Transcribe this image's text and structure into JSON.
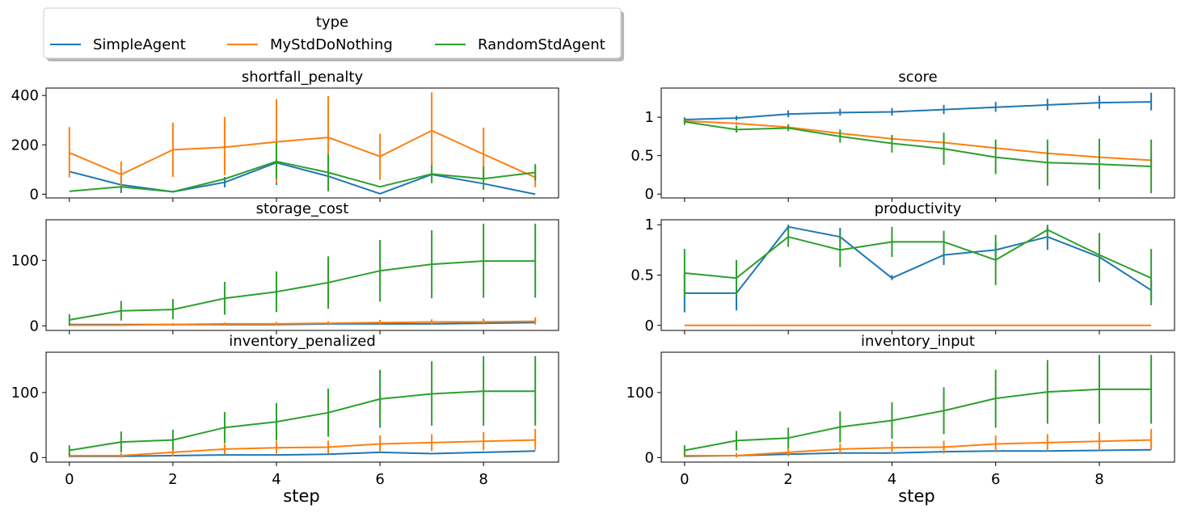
{
  "legend": {
    "title": "type",
    "placement": "upper-left-outside",
    "entries": [
      {
        "name": "SimpleAgent",
        "color": "#1f77b4"
      },
      {
        "name": "MyStdDoNothing",
        "color": "#ff7f0e"
      },
      {
        "name": "RandomStdAgent",
        "color": "#2ca02c"
      }
    ]
  },
  "xlabel": "step",
  "chart_data": [
    {
      "type": "line",
      "title": "shortfall_penalty",
      "x": [
        0,
        1,
        2,
        3,
        4,
        5,
        6,
        7,
        8,
        9
      ],
      "xticks": [
        0,
        2,
        4,
        6,
        8
      ],
      "ylim": [
        -15,
        430
      ],
      "yticks": [
        0,
        200,
        400
      ],
      "grid": false,
      "series": [
        {
          "name": "SimpleAgent",
          "color": "#1f77b4",
          "values": [
            92,
            38,
            10,
            48,
            128,
            73,
            2,
            80,
            43,
            0
          ],
          "err": [
            null,
            [
              5,
              72
            ],
            null,
            [
              28,
              70
            ],
            [
              38,
              138
            ],
            null,
            null,
            null,
            null,
            null
          ]
        },
        {
          "name": "MyStdDoNothing",
          "color": "#ff7f0e",
          "values": [
            168,
            80,
            180,
            190,
            212,
            230,
            153,
            258,
            162,
            68
          ],
          "err": [
            [
              68,
              272
            ],
            [
              28,
              133
            ],
            [
              70,
              290
            ],
            [
              78,
              313
            ],
            [
              45,
              385
            ],
            [
              88,
              398
            ],
            [
              58,
              245
            ],
            [
              110,
              413
            ],
            [
              58,
              270
            ],
            [
              28,
              118
            ]
          ]
        },
        {
          "name": "RandomStdAgent",
          "color": "#2ca02c",
          "values": [
            12,
            30,
            10,
            62,
            133,
            88,
            30,
            82,
            63,
            88
          ],
          "err": [
            null,
            null,
            null,
            null,
            [
              62,
              210
            ],
            [
              12,
              163
            ],
            null,
            [
              45,
              118
            ],
            [
              18,
              112
            ],
            [
              55,
              122
            ]
          ]
        }
      ]
    },
    {
      "type": "line",
      "title": "score",
      "x": [
        0,
        1,
        2,
        3,
        4,
        5,
        6,
        7,
        8,
        9
      ],
      "xticks": [
        0,
        2,
        4,
        6,
        8
      ],
      "ylim": [
        -0.05,
        1.38
      ],
      "yticks": [
        0.0,
        0.5,
        1.0
      ],
      "grid": false,
      "series": [
        {
          "name": "SimpleAgent",
          "color": "#1f77b4",
          "values": [
            0.97,
            0.99,
            1.04,
            1.06,
            1.07,
            1.1,
            1.13,
            1.16,
            1.19,
            1.2
          ],
          "err": [
            [
              0.94,
              1.0
            ],
            [
              0.96,
              1.02
            ],
            [
              1.0,
              1.09
            ],
            [
              1.02,
              1.11
            ],
            [
              1.02,
              1.12
            ],
            [
              1.04,
              1.16
            ],
            [
              1.07,
              1.2
            ],
            [
              1.09,
              1.24
            ],
            [
              1.11,
              1.28
            ],
            [
              1.09,
              1.32
            ]
          ]
        },
        {
          "name": "MyStdDoNothing",
          "color": "#ff7f0e",
          "values": [
            0.95,
            0.92,
            0.87,
            0.79,
            0.72,
            0.67,
            0.6,
            0.53,
            0.48,
            0.44
          ],
          "err": [
            [
              0.93,
              0.97
            ],
            [
              0.9,
              0.94
            ],
            [
              0.85,
              0.89
            ],
            [
              0.76,
              0.82
            ],
            [
              0.7,
              0.75
            ],
            [
              0.64,
              0.7
            ],
            [
              0.57,
              0.63
            ],
            [
              0.5,
              0.56
            ],
            [
              0.45,
              0.51
            ],
            [
              0.41,
              0.47
            ]
          ]
        },
        {
          "name": "RandomStdAgent",
          "color": "#2ca02c",
          "values": [
            0.94,
            0.84,
            0.86,
            0.75,
            0.66,
            0.59,
            0.48,
            0.41,
            0.39,
            0.36
          ],
          "err": [
            [
              0.9,
              0.98
            ],
            [
              0.8,
              0.89
            ],
            [
              0.82,
              0.91
            ],
            [
              0.67,
              0.84
            ],
            [
              0.54,
              0.77
            ],
            [
              0.38,
              0.8
            ],
            [
              0.26,
              0.71
            ],
            [
              0.11,
              0.71
            ],
            [
              0.06,
              0.72
            ],
            [
              0.01,
              0.71
            ]
          ]
        }
      ]
    },
    {
      "type": "line",
      "title": "storage_cost",
      "x": [
        0,
        1,
        2,
        3,
        4,
        5,
        6,
        7,
        8,
        9
      ],
      "xticks": [
        0,
        2,
        4,
        6,
        8
      ],
      "ylim": [
        -7,
        162
      ],
      "yticks": [
        0,
        100
      ],
      "grid": false,
      "series": [
        {
          "name": "SimpleAgent",
          "color": "#1f77b4",
          "values": [
            2,
            2,
            2,
            2,
            2,
            3,
            3,
            3,
            4,
            5
          ],
          "err": [
            null,
            null,
            null,
            null,
            null,
            null,
            null,
            null,
            null,
            null
          ]
        },
        {
          "name": "MyStdDoNothing",
          "color": "#ff7f0e",
          "values": [
            1,
            1,
            2,
            3,
            3,
            4,
            5,
            6,
            6,
            7
          ],
          "err": [
            null,
            [
              0,
              3
            ],
            [
              0,
              4
            ],
            [
              1,
              5
            ],
            [
              1,
              6
            ],
            [
              1,
              7
            ],
            [
              1,
              9
            ],
            [
              2,
              10
            ],
            [
              2,
              11
            ],
            [
              2,
              13
            ]
          ]
        },
        {
          "name": "RandomStdAgent",
          "color": "#2ca02c",
          "values": [
            9,
            23,
            25,
            42,
            52,
            66,
            84,
            94,
            99,
            99
          ],
          "err": [
            [
              0,
              18
            ],
            [
              8,
              38
            ],
            [
              10,
              41
            ],
            [
              17,
              67
            ],
            [
              21,
              83
            ],
            [
              26,
              106
            ],
            [
              37,
              131
            ],
            [
              42,
              146
            ],
            [
              43,
              156
            ],
            [
              43,
              156
            ]
          ]
        }
      ]
    },
    {
      "type": "line",
      "title": "productivity",
      "x": [
        0,
        1,
        2,
        3,
        4,
        5,
        6,
        7,
        8,
        9
      ],
      "xticks": [
        0,
        2,
        4,
        6,
        8
      ],
      "ylim": [
        -0.05,
        1.05
      ],
      "yticks": [
        0.0,
        0.5,
        1.0
      ],
      "grid": false,
      "series": [
        {
          "name": "SimpleAgent",
          "color": "#1f77b4",
          "values": [
            0.32,
            0.32,
            0.98,
            0.88,
            0.47,
            0.7,
            0.75,
            0.88,
            0.68,
            0.35
          ],
          "err": [
            [
              0.13,
              0.52
            ],
            [
              0.15,
              0.5
            ],
            [
              0.93,
              1.0
            ],
            [
              0.78,
              0.97
            ],
            [
              0.45,
              0.5
            ],
            [
              0.6,
              0.8
            ],
            [
              0.68,
              0.82
            ],
            [
              0.75,
              0.98
            ],
            [
              0.6,
              0.77
            ],
            [
              0.25,
              0.45
            ]
          ]
        },
        {
          "name": "MyStdDoNothing",
          "color": "#ff7f0e",
          "values": [
            0,
            0,
            0,
            0,
            0,
            0,
            0,
            0,
            0,
            0
          ],
          "err": [
            null,
            null,
            null,
            null,
            null,
            null,
            null,
            null,
            null,
            null
          ]
        },
        {
          "name": "RandomStdAgent",
          "color": "#2ca02c",
          "values": [
            0.52,
            0.47,
            0.88,
            0.75,
            0.83,
            0.83,
            0.65,
            0.95,
            0.7,
            0.47
          ],
          "err": [
            [
              0.28,
              0.76
            ],
            [
              0.3,
              0.65
            ],
            [
              0.78,
              0.97
            ],
            [
              0.58,
              0.92
            ],
            [
              0.68,
              0.98
            ],
            [
              0.72,
              0.94
            ],
            [
              0.4,
              0.9
            ],
            [
              0.87,
              1.0
            ],
            [
              0.43,
              0.92
            ],
            [
              0.2,
              0.76
            ]
          ]
        }
      ]
    },
    {
      "type": "line",
      "title": "inventory_penalized",
      "x": [
        0,
        1,
        2,
        3,
        4,
        5,
        6,
        7,
        8,
        9
      ],
      "xticks": [
        0,
        2,
        4,
        6,
        8
      ],
      "ylim": [
        -7,
        162
      ],
      "yticks": [
        0,
        100
      ],
      "grid": false,
      "series": [
        {
          "name": "SimpleAgent",
          "color": "#1f77b4",
          "values": [
            2,
            2,
            3,
            4,
            4,
            5,
            8,
            6,
            8,
            10
          ],
          "err": [
            null,
            null,
            null,
            null,
            null,
            null,
            null,
            null,
            null,
            null
          ]
        },
        {
          "name": "MyStdDoNothing",
          "color": "#ff7f0e",
          "values": [
            3,
            3,
            8,
            13,
            15,
            16,
            21,
            23,
            25,
            27
          ],
          "err": [
            [
              0,
              6
            ],
            [
              0,
              7
            ],
            [
              2,
              14
            ],
            [
              5,
              21
            ],
            [
              6,
              25
            ],
            [
              6,
              26
            ],
            [
              8,
              34
            ],
            [
              10,
              36
            ],
            [
              11,
              39
            ],
            [
              12,
              44
            ]
          ]
        },
        {
          "name": "RandomStdAgent",
          "color": "#2ca02c",
          "values": [
            11,
            24,
            27,
            46,
            55,
            69,
            90,
            98,
            102,
            102
          ],
          "err": [
            [
              3,
              19
            ],
            [
              8,
              40
            ],
            [
              12,
              43
            ],
            [
              22,
              70
            ],
            [
              26,
              84
            ],
            [
              32,
              106
            ],
            [
              46,
              135
            ],
            [
              49,
              148
            ],
            [
              49,
              156
            ],
            [
              49,
              156
            ]
          ]
        }
      ]
    },
    {
      "type": "line",
      "title": "inventory_input",
      "x": [
        0,
        1,
        2,
        3,
        4,
        5,
        6,
        7,
        8,
        9
      ],
      "xticks": [
        0,
        2,
        4,
        6,
        8
      ],
      "ylim": [
        -7,
        162
      ],
      "yticks": [
        0,
        100
      ],
      "grid": false,
      "series": [
        {
          "name": "SimpleAgent",
          "color": "#1f77b4",
          "values": [
            2,
            3,
            5,
            7,
            7,
            9,
            10,
            10,
            11,
            12
          ],
          "err": [
            null,
            null,
            null,
            null,
            null,
            null,
            null,
            null,
            null,
            null
          ]
        },
        {
          "name": "MyStdDoNothing",
          "color": "#ff7f0e",
          "values": [
            3,
            3,
            8,
            13,
            15,
            16,
            21,
            23,
            25,
            27
          ],
          "err": [
            [
              0,
              6
            ],
            [
              0,
              7
            ],
            [
              2,
              14
            ],
            [
              5,
              21
            ],
            [
              6,
              25
            ],
            [
              6,
              26
            ],
            [
              8,
              34
            ],
            [
              10,
              36
            ],
            [
              11,
              39
            ],
            [
              12,
              44
            ]
          ]
        },
        {
          "name": "RandomStdAgent",
          "color": "#2ca02c",
          "values": [
            11,
            26,
            30,
            47,
            57,
            72,
            91,
            101,
            105,
            105
          ],
          "err": [
            [
              3,
              19
            ],
            [
              11,
              41
            ],
            [
              14,
              46
            ],
            [
              23,
              71
            ],
            [
              29,
              85
            ],
            [
              36,
              108
            ],
            [
              46,
              135
            ],
            [
              52,
              150
            ],
            [
              52,
              158
            ],
            [
              52,
              158
            ]
          ]
        }
      ]
    }
  ]
}
